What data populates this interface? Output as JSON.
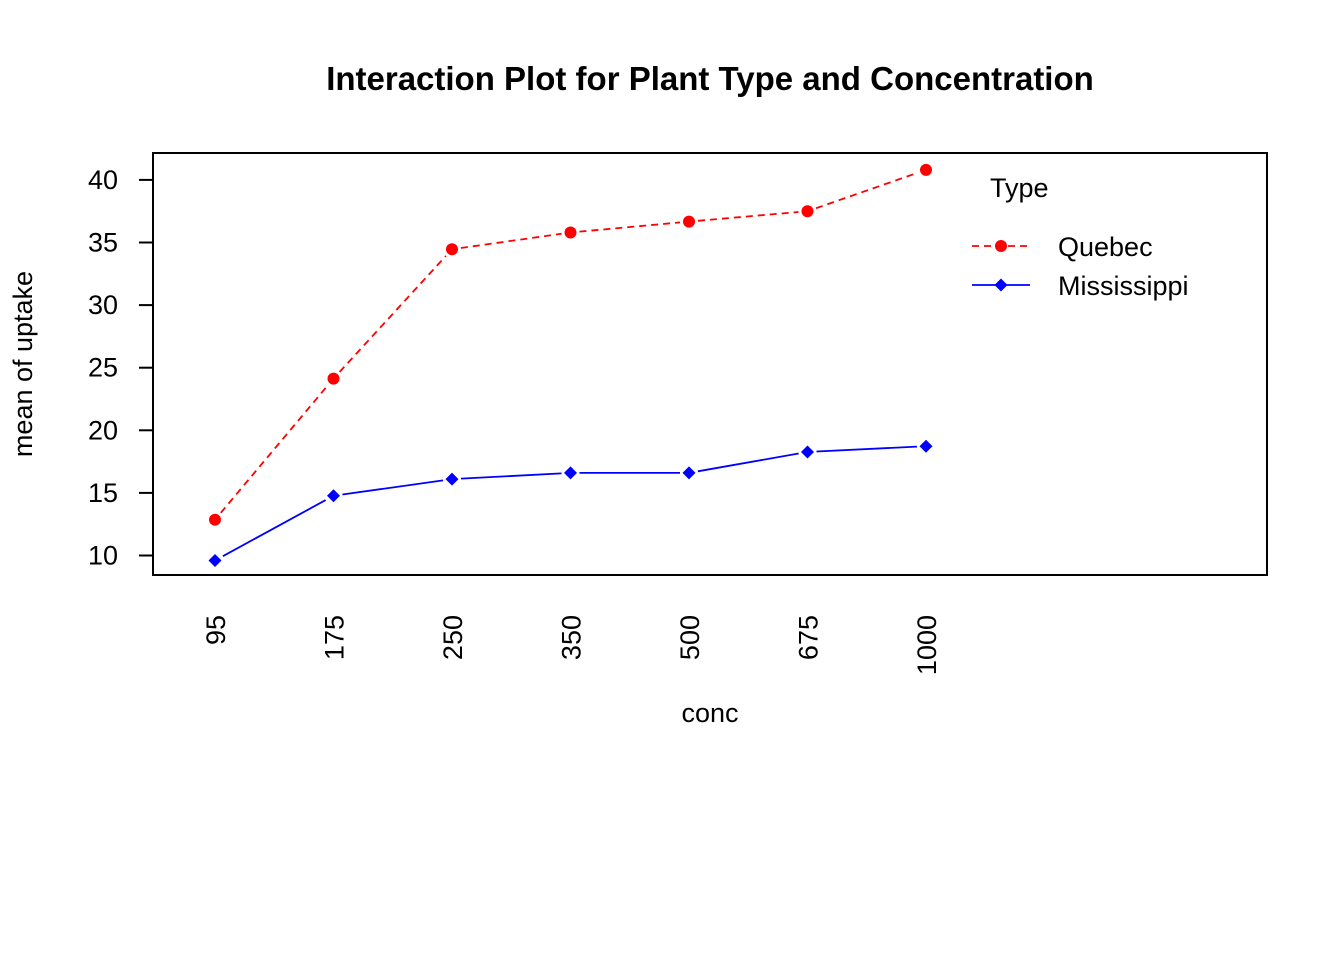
{
  "chart_data": {
    "type": "line",
    "title": "Interaction Plot for Plant Type and Concentration",
    "xlabel": "conc",
    "ylabel": "mean of  uptake",
    "categories": [
      "95",
      "175",
      "250",
      "350",
      "500",
      "675",
      "1000"
    ],
    "yticks": [
      10,
      15,
      20,
      25,
      30,
      35,
      40
    ],
    "ylim": [
      8.5,
      42
    ],
    "grid": false,
    "legend": {
      "title": "Type",
      "placement": "top-right"
    },
    "series": [
      {
        "name": "Quebec",
        "values": [
          12.86,
          24.13,
          34.46,
          35.8,
          36.67,
          37.5,
          40.8
        ],
        "color": "#ff0000",
        "line_style": "dashed",
        "marker": "circle"
      },
      {
        "name": "Mississippi",
        "values": [
          9.6,
          14.77,
          16.1,
          16.6,
          16.6,
          18.27,
          18.73
        ],
        "color": "#0000ff",
        "line_style": "solid",
        "marker": "diamond"
      }
    ]
  }
}
